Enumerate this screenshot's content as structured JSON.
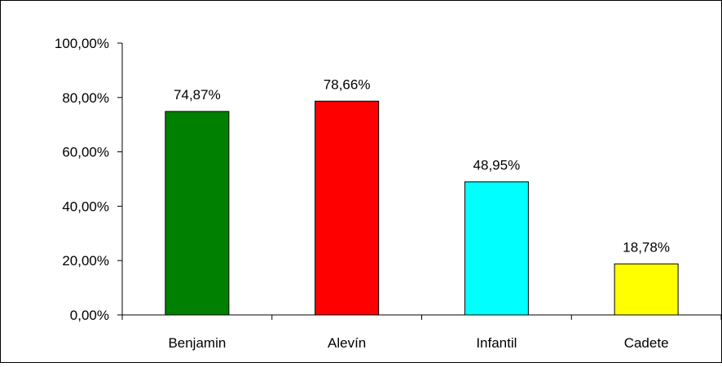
{
  "chart_data": {
    "type": "bar",
    "categories": [
      "Benjamin",
      "Alevín",
      "Infantil",
      "Cadete"
    ],
    "values": [
      74.87,
      78.66,
      48.95,
      18.78
    ],
    "data_labels": [
      "74,87%",
      "78,66%",
      "48,95%",
      "18,78%"
    ],
    "colors": [
      "#008000",
      "#ff0000",
      "#00ffff",
      "#ffff00"
    ],
    "ylim": [
      0,
      100
    ],
    "yticks": [
      0,
      20,
      40,
      60,
      80,
      100
    ],
    "ytick_labels": [
      "0,00%",
      "20,00%",
      "40,00%",
      "60,00%",
      "80,00%",
      "100,00%"
    ],
    "title": "",
    "xlabel": "",
    "ylabel": "",
    "grid": false,
    "legend": "none"
  }
}
